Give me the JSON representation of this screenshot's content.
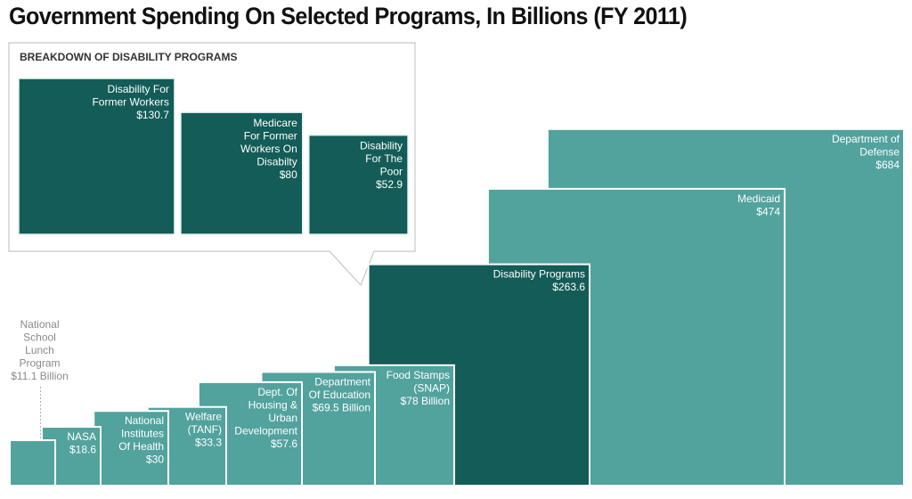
{
  "title": "Government Spending On Selected Programs, In Billions (FY 2011)",
  "colors": {
    "main": "#52a29e",
    "highlight": "#135c57",
    "leader": "#b0b0b0"
  },
  "chart_data": {
    "type": "area",
    "encoding": "proportional squares anchored to baseline, drawn largest first",
    "title": "Government Spending On Selected Programs, In Billions (FY 2011)",
    "unit": "billions of dollars",
    "items": [
      {
        "id": "defense",
        "lines": [
          "Department of",
          "Defense",
          "$684"
        ],
        "value": 684,
        "highlight": false
      },
      {
        "id": "medicaid",
        "lines": [
          "Medicaid",
          "$474"
        ],
        "value": 474,
        "highlight": false
      },
      {
        "id": "disability",
        "lines": [
          "Disability Programs",
          "$263.6"
        ],
        "value": 263.6,
        "highlight": true
      },
      {
        "id": "snap",
        "lines": [
          "Food Stamps",
          "(SNAP)",
          "$78 Billion"
        ],
        "value": 78,
        "highlight": false
      },
      {
        "id": "education",
        "lines": [
          "Department",
          "Of Education",
          "$69.5 Billion"
        ],
        "value": 69.5,
        "highlight": false
      },
      {
        "id": "housing",
        "lines": [
          "Dept. Of",
          "Housing &",
          "Urban",
          "Development",
          "$57.6"
        ],
        "value": 57.6,
        "highlight": false
      },
      {
        "id": "tanf",
        "lines": [
          "Welfare",
          "(TANF)",
          "$33.3"
        ],
        "value": 33.3,
        "highlight": false
      },
      {
        "id": "nih",
        "lines": [
          "National",
          "Institutes",
          "Of Health",
          "$30"
        ],
        "value": 30,
        "highlight": false
      },
      {
        "id": "nasa",
        "lines": [
          "NASA",
          "$18.6"
        ],
        "value": 18.6,
        "highlight": false
      },
      {
        "id": "lunch",
        "lines": [
          "National",
          "School",
          "Lunch",
          "Program",
          "$11.1 Billion"
        ],
        "value": 11.1,
        "highlight": false,
        "label_outside": true
      }
    ],
    "breakdown": {
      "title": "BREAKDOWN OF DISABILITY PROGRAMS",
      "parent": "disability",
      "items": [
        {
          "id": "former-workers",
          "lines": [
            "Disability For",
            "Former Workers",
            "$130.7"
          ],
          "value": 130.7
        },
        {
          "id": "medicare",
          "lines": [
            "Medicare",
            "For Former",
            "Workers On",
            "Disabilty",
            "$80"
          ],
          "value": 80
        },
        {
          "id": "poor",
          "lines": [
            "Disability",
            "For The",
            "Poor",
            "$52.9"
          ],
          "value": 52.9
        }
      ]
    }
  }
}
